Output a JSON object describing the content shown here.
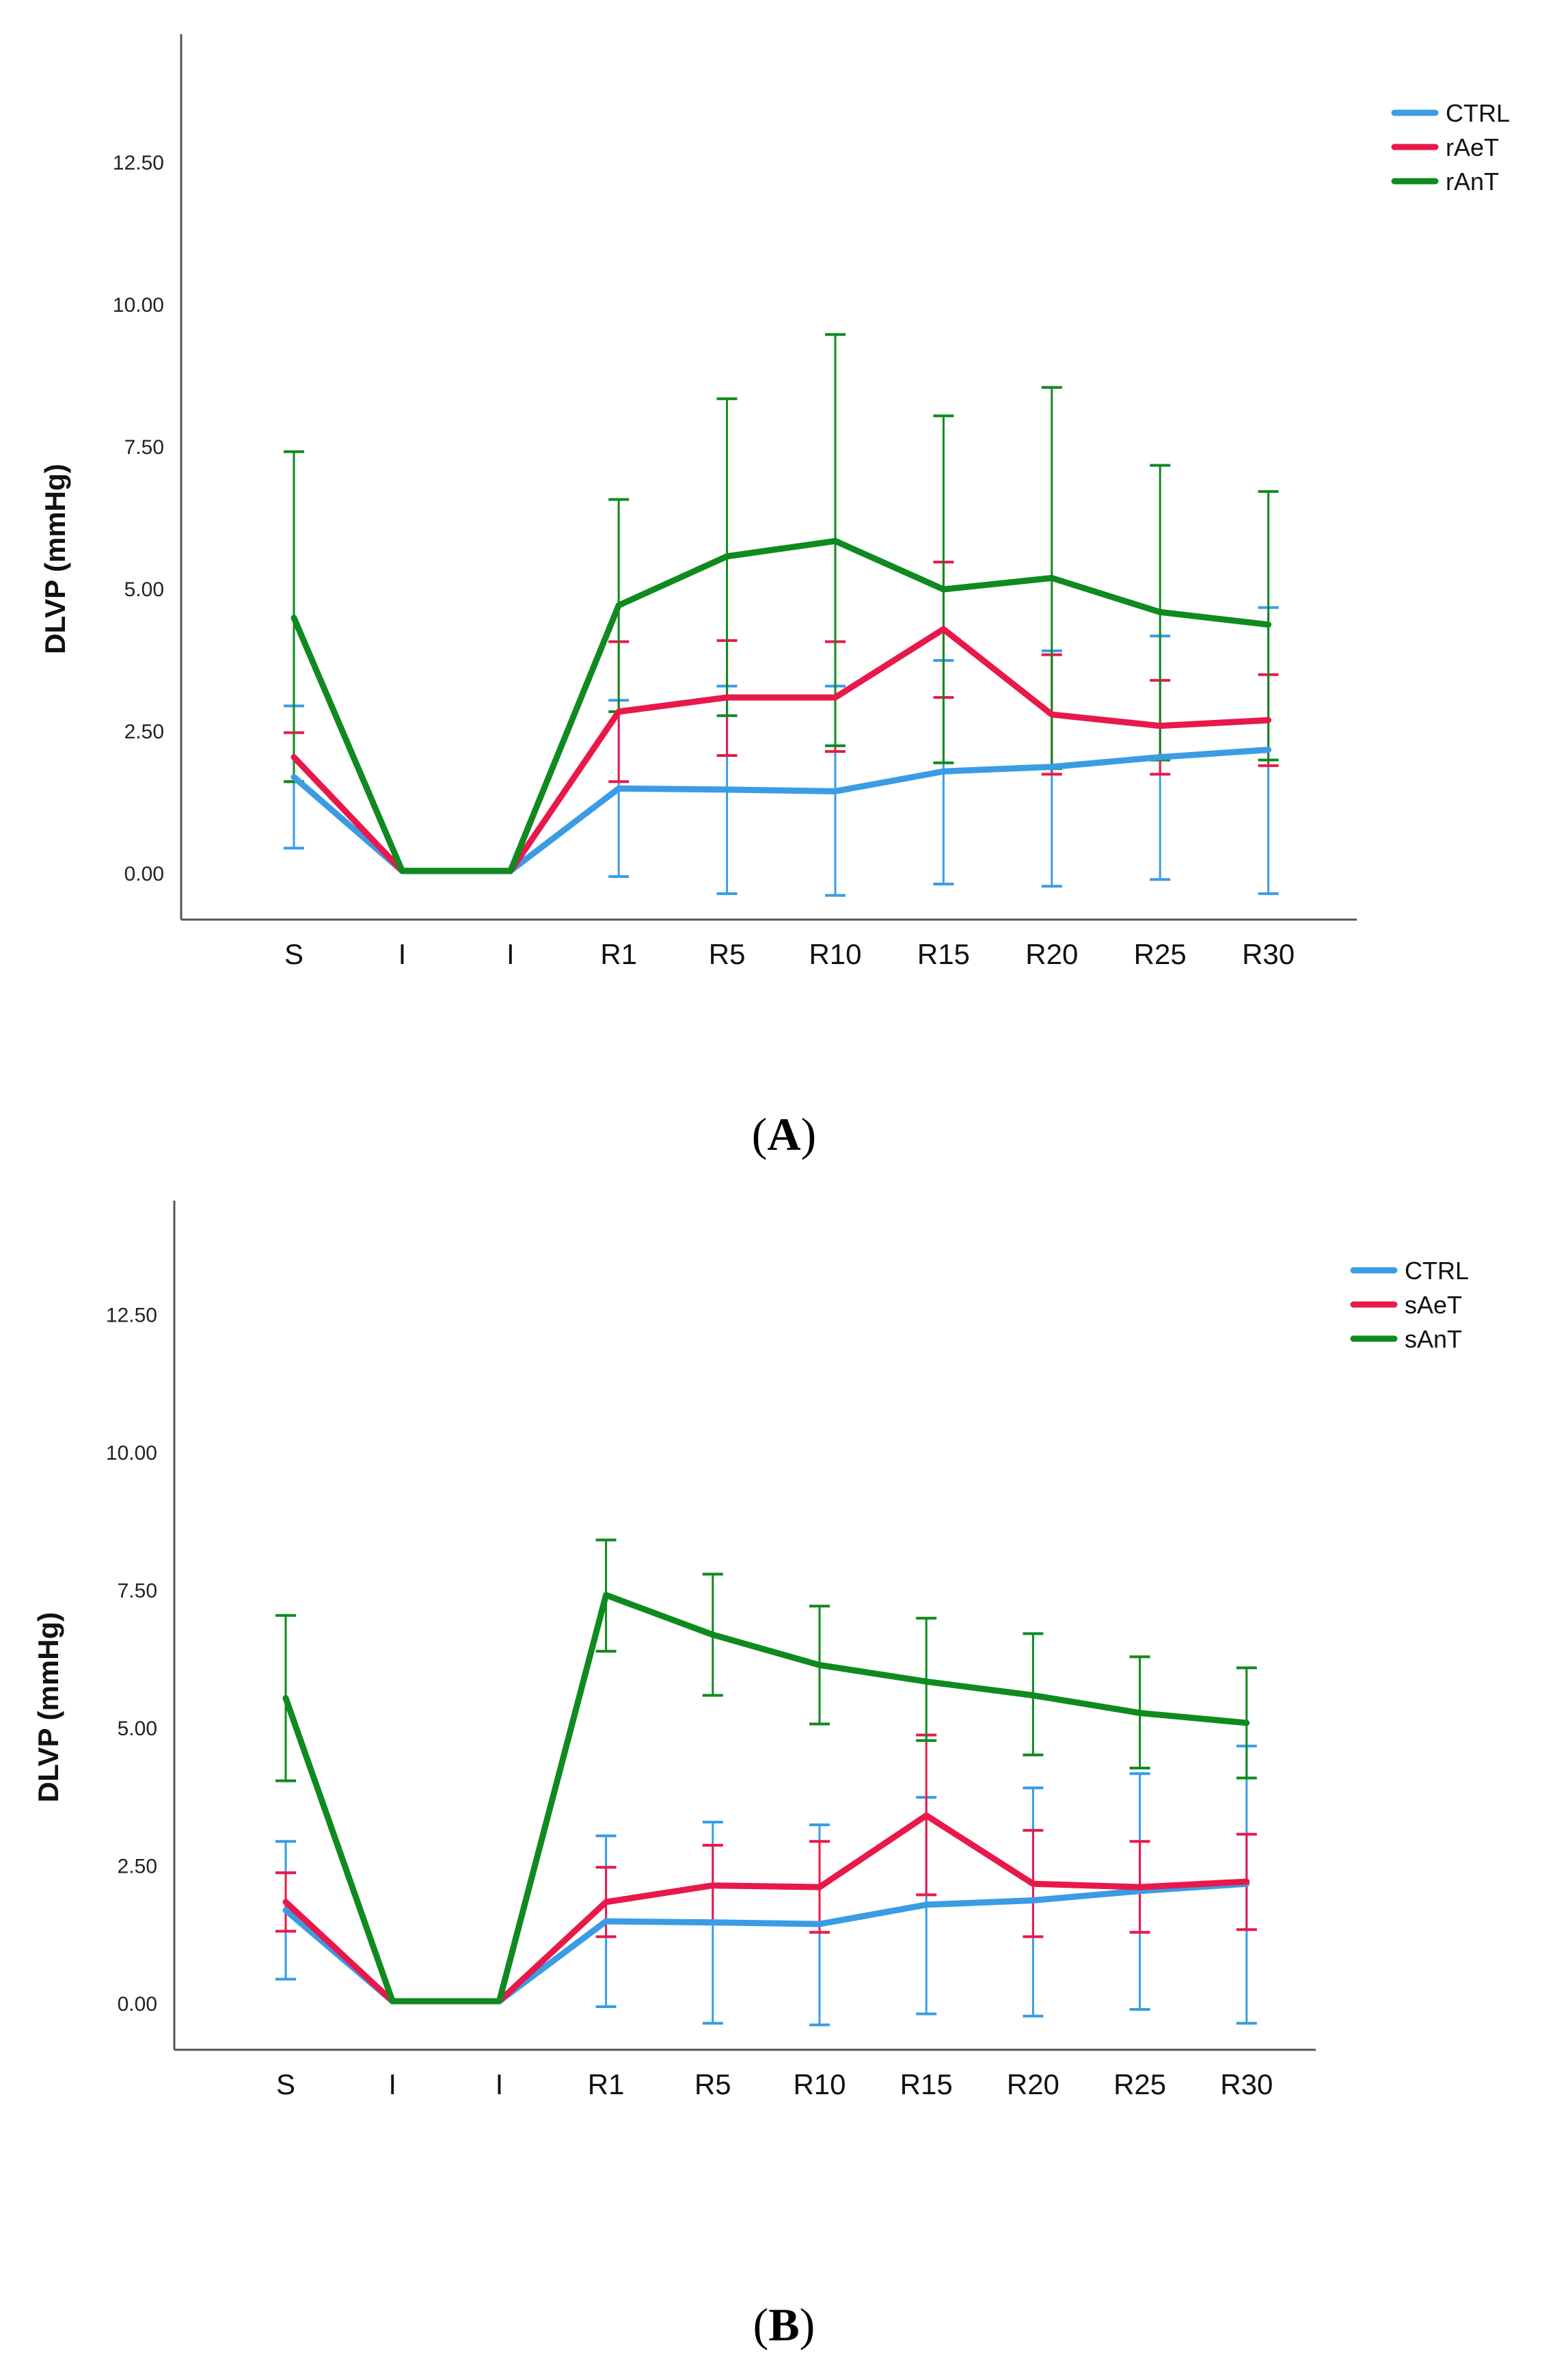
{
  "chart_data": [
    {
      "id": "A",
      "type": "line",
      "caption": "A",
      "ylabel": "DLVP (mmHg)",
      "xlabel": "",
      "ylim": [
        -0.75,
        14.75
      ],
      "yticks": [
        0.0,
        2.5,
        5.0,
        7.5,
        10.0,
        12.5
      ],
      "ytick_labels": [
        "0.00",
        "2.50",
        "5.00",
        "7.50",
        "10.00",
        "12.50"
      ],
      "categories": [
        "S",
        "I",
        "I",
        "R1",
        "R5",
        "R10",
        "R15",
        "R20",
        "R25",
        "R30"
      ],
      "legend_position": "top-right",
      "series": [
        {
          "name": "CTRL",
          "color": "#3a9ce4",
          "values": [
            1.7,
            0.05,
            0.05,
            1.5,
            1.48,
            1.45,
            1.8,
            1.88,
            2.05,
            2.18
          ],
          "err_low": [
            0.45,
            0.05,
            0.05,
            -0.05,
            -0.35,
            -0.38,
            -0.18,
            -0.22,
            -0.1,
            -0.35
          ],
          "err_high": [
            2.95,
            0.05,
            0.05,
            3.05,
            3.3,
            3.3,
            3.75,
            3.92,
            4.18,
            4.68
          ]
        },
        {
          "name": "rAeT",
          "color": "#e8194a",
          "values": [
            2.05,
            0.05,
            0.05,
            2.85,
            3.1,
            3.1,
            4.3,
            2.8,
            2.6,
            2.7
          ],
          "err_low": [
            1.62,
            0.05,
            0.05,
            1.62,
            2.08,
            2.15,
            3.1,
            1.75,
            1.75,
            1.9
          ],
          "err_high": [
            2.48,
            0.05,
            0.05,
            4.08,
            4.1,
            4.08,
            5.48,
            3.85,
            3.4,
            3.5
          ]
        },
        {
          "name": "rAnT",
          "color": "#0f8a1f",
          "values": [
            4.5,
            0.05,
            0.05,
            4.72,
            5.58,
            5.85,
            5.0,
            5.2,
            4.6,
            4.38
          ],
          "err_low": [
            1.62,
            0.05,
            0.05,
            2.85,
            2.78,
            2.25,
            1.95,
            1.85,
            2.0,
            2.0
          ],
          "err_high": [
            7.42,
            0.05,
            0.05,
            6.58,
            8.35,
            9.48,
            8.05,
            8.55,
            7.18,
            6.72
          ]
        }
      ]
    },
    {
      "id": "B",
      "type": "line",
      "caption": "B",
      "ylabel": "DLVP (mmHg)",
      "xlabel": "",
      "ylim": [
        -0.75,
        14.75
      ],
      "yticks": [
        0.0,
        2.5,
        5.0,
        7.5,
        10.0,
        12.5
      ],
      "ytick_labels": [
        "0.00",
        "2.50",
        "5.00",
        "7.50",
        "10.00",
        "12.50"
      ],
      "categories": [
        "S",
        "I",
        "I",
        "R1",
        "R5",
        "R10",
        "R15",
        "R20",
        "R25",
        "R30"
      ],
      "legend_position": "top-right",
      "series": [
        {
          "name": "CTRL",
          "color": "#3a9ce4",
          "values": [
            1.7,
            0.05,
            0.05,
            1.5,
            1.48,
            1.45,
            1.8,
            1.88,
            2.05,
            2.18
          ],
          "err_low": [
            0.45,
            0.05,
            0.05,
            -0.05,
            -0.35,
            -0.38,
            -0.18,
            -0.22,
            -0.1,
            -0.35
          ],
          "err_high": [
            2.95,
            0.05,
            0.05,
            3.05,
            3.3,
            3.25,
            3.75,
            3.92,
            4.18,
            4.68
          ]
        },
        {
          "name": "sAeT",
          "color": "#e8194a",
          "values": [
            1.85,
            0.05,
            0.05,
            1.85,
            2.15,
            2.12,
            3.42,
            2.18,
            2.12,
            2.22
          ],
          "err_low": [
            1.32,
            0.05,
            0.05,
            1.22,
            1.45,
            1.3,
            1.98,
            1.22,
            1.3,
            1.35
          ],
          "err_high": [
            2.38,
            0.05,
            0.05,
            2.48,
            2.88,
            2.95,
            4.88,
            3.15,
            2.95,
            3.08
          ]
        },
        {
          "name": "sAnT",
          "color": "#0f8a1f",
          "values": [
            5.55,
            0.05,
            0.05,
            7.42,
            6.7,
            6.15,
            5.85,
            5.6,
            5.28,
            5.1
          ],
          "err_low": [
            4.05,
            0.05,
            0.05,
            6.4,
            5.6,
            5.08,
            4.78,
            4.52,
            4.28,
            4.1
          ],
          "err_high": [
            7.05,
            0.05,
            0.05,
            8.42,
            7.8,
            7.22,
            7.0,
            6.72,
            6.3,
            6.1
          ]
        }
      ]
    }
  ]
}
